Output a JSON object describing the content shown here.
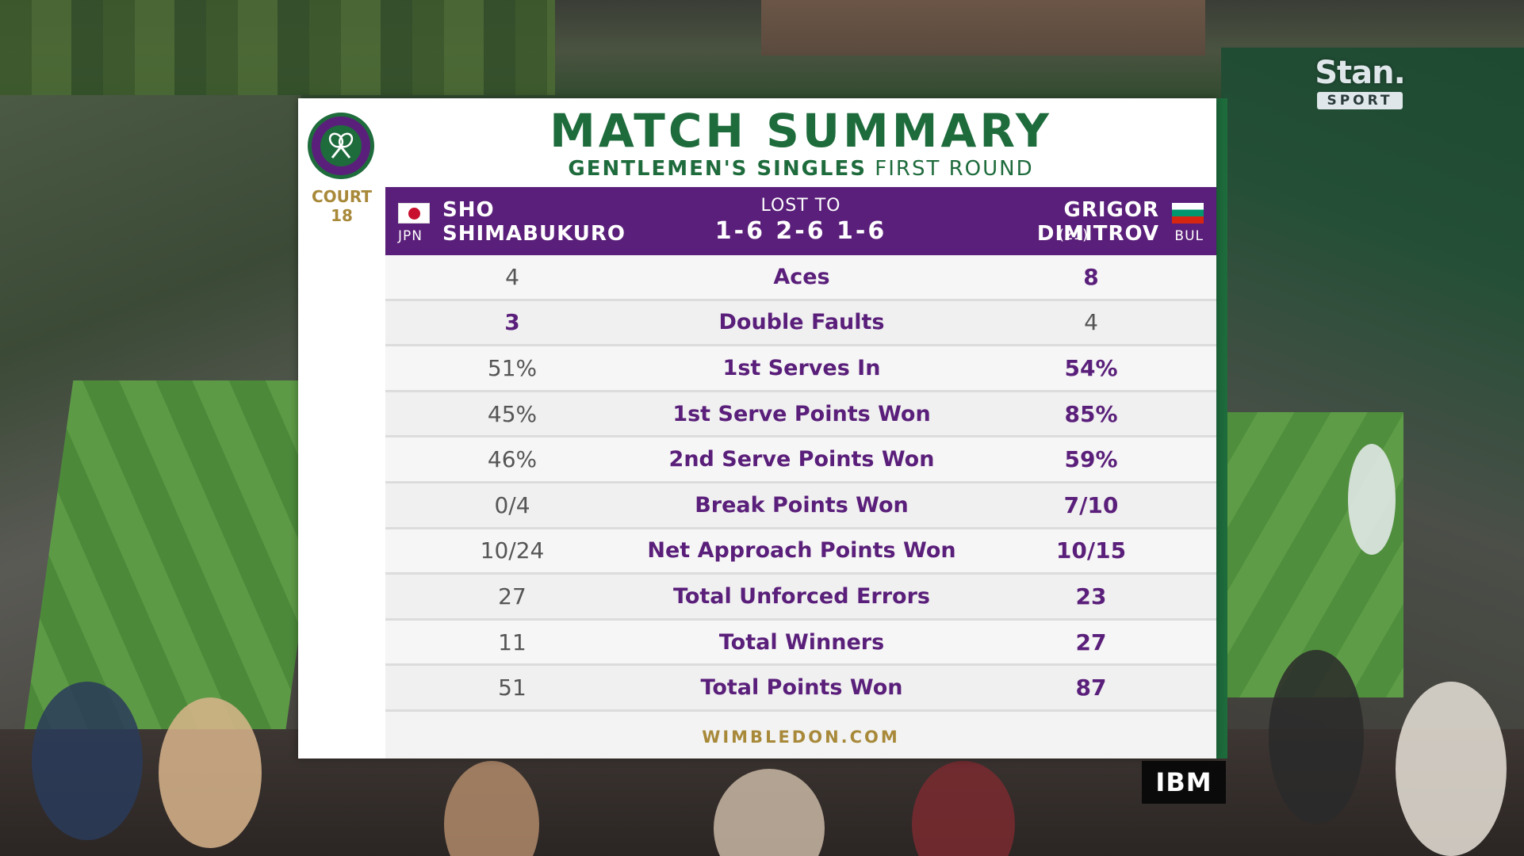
{
  "broadcaster": {
    "logo_top": "Stan.",
    "logo_bottom": "SPORT"
  },
  "sponsor": {
    "logo": "IBM"
  },
  "colors": {
    "brand_green": "#1e6b3c",
    "brand_purple": "#5a1f7a",
    "gold": "#a8893a"
  },
  "court": {
    "line1": "COURT",
    "line2": "18"
  },
  "title": "MATCH SUMMARY",
  "subtitle": {
    "event": "GENTLEMEN'S SINGLES",
    "round": "FIRST ROUND"
  },
  "player1": {
    "first": "SHO",
    "last": "SHIMABUKURO",
    "country": "JPN",
    "flag": "japan-flag-icon"
  },
  "result": {
    "label": "LOST TO",
    "score": "1-6 2-6 1-6"
  },
  "player2": {
    "first": "GRIGOR",
    "last": "DIMITROV",
    "seed": "(21)",
    "country": "BUL",
    "flag": "bulgaria-flag-icon"
  },
  "stats": [
    {
      "label": "Aces",
      "p1": "4",
      "p2": "8",
      "winner": "p2"
    },
    {
      "label": "Double Faults",
      "p1": "3",
      "p2": "4",
      "winner": "p1"
    },
    {
      "label": "1st Serves In",
      "p1": "51%",
      "p2": "54%",
      "winner": "p2"
    },
    {
      "label": "1st Serve Points Won",
      "p1": "45%",
      "p2": "85%",
      "winner": "p2"
    },
    {
      "label": "2nd Serve Points Won",
      "p1": "46%",
      "p2": "59%",
      "winner": "p2"
    },
    {
      "label": "Break Points Won",
      "p1": "0/4",
      "p2": "7/10",
      "winner": "p2"
    },
    {
      "label": "Net Approach Points Won",
      "p1": "10/24",
      "p2": "10/15",
      "winner": "p2"
    },
    {
      "label": "Total Unforced Errors",
      "p1": "27",
      "p2": "23",
      "winner": "p2"
    },
    {
      "label": "Total Winners",
      "p1": "11",
      "p2": "27",
      "winner": "p2"
    },
    {
      "label": "Total Points Won",
      "p1": "51",
      "p2": "87",
      "winner": "p2"
    }
  ],
  "footer": "WIMBLEDON.COM"
}
